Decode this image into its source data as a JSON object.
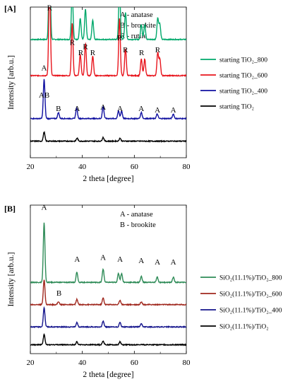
{
  "chart_data": [
    {
      "panel_label": "[A]",
      "type": "line",
      "xlabel": "2 theta [degree]",
      "ylabel": "Intensity [arb.u.]",
      "xlim": [
        20,
        80
      ],
      "x_ticks": [
        "20",
        "40",
        "60",
        "80"
      ],
      "y_ticks_shown": false,
      "legend_position": "right",
      "key": [
        "A - anatase",
        "B - brookite",
        "R - rutile"
      ],
      "series": [
        {
          "name": "starting TiO₂_800",
          "color": "#00a86b",
          "baseline": 0.785,
          "peaks": [
            [
              27.4,
              0.62
            ],
            [
              36.1,
              0.32
            ],
            [
              39.2,
              0.14
            ],
            [
              41.2,
              0.2
            ],
            [
              44.0,
              0.13
            ],
            [
              54.3,
              0.35
            ],
            [
              56.6,
              0.18
            ],
            [
              62.7,
              0.1
            ],
            [
              64.0,
              0.1
            ],
            [
              69.0,
              0.14
            ],
            [
              69.8,
              0.1
            ]
          ]
        },
        {
          "name": "starting TiO₂_600",
          "color": "#e8141c",
          "baseline": 0.545,
          "peaks": [
            [
              27.4,
              0.65
            ],
            [
              36.1,
              0.35
            ],
            [
              39.2,
              0.14
            ],
            [
              41.2,
              0.21
            ],
            [
              44.0,
              0.13
            ],
            [
              54.3,
              0.38
            ],
            [
              56.6,
              0.18
            ],
            [
              62.7,
              0.11
            ],
            [
              64.0,
              0.11
            ],
            [
              69.0,
              0.15
            ],
            [
              69.8,
              0.11
            ]
          ]
        },
        {
          "name": "starting TiO₂_400",
          "color": "#1010a0",
          "baseline": 0.26,
          "peaks": [
            [
              25.3,
              0.26
            ],
            [
              30.8,
              0.04
            ],
            [
              37.8,
              0.07
            ],
            [
              48.0,
              0.08
            ],
            [
              53.9,
              0.05
            ],
            [
              55.1,
              0.05
            ],
            [
              62.7,
              0.04
            ],
            [
              68.8,
              0.03
            ],
            [
              75.0,
              0.03
            ]
          ]
        },
        {
          "name": "starting TiO₂",
          "color": "#000000",
          "baseline": 0.11,
          "peaks": [
            [
              25.3,
              0.06
            ],
            [
              38.0,
              0.02
            ],
            [
              48.0,
              0.025
            ],
            [
              54.5,
              0.02
            ]
          ]
        }
      ],
      "annotations": [
        {
          "text": "R",
          "x": 27.4,
          "y": 0.98
        },
        {
          "text": "R",
          "x": 36.1,
          "y": 0.75
        },
        {
          "text": "R",
          "x": 39.4,
          "y": 0.68
        },
        {
          "text": "R",
          "x": 41.2,
          "y": 0.72
        },
        {
          "text": "R",
          "x": 44.0,
          "y": 0.68
        },
        {
          "text": "R",
          "x": 54.3,
          "y": 0.78
        },
        {
          "text": "R",
          "x": 56.6,
          "y": 0.7
        },
        {
          "text": "R",
          "x": 62.8,
          "y": 0.68
        },
        {
          "text": "R",
          "x": 69.0,
          "y": 0.7
        },
        {
          "text": "A",
          "x": 25.3,
          "y": 0.58
        },
        {
          "text": "AB",
          "x": 25.3,
          "y": 0.4
        },
        {
          "text": "B",
          "x": 30.8,
          "y": 0.31
        },
        {
          "text": "A",
          "x": 38.0,
          "y": 0.31
        },
        {
          "text": "A",
          "x": 48.0,
          "y": 0.32
        },
        {
          "text": "A",
          "x": 54.5,
          "y": 0.31
        },
        {
          "text": "A",
          "x": 62.7,
          "y": 0.31
        },
        {
          "text": "A",
          "x": 68.9,
          "y": 0.3
        },
        {
          "text": "A",
          "x": 75.0,
          "y": 0.3
        }
      ]
    },
    {
      "panel_label": "[B]",
      "type": "line",
      "xlabel": "2 theta [degree]",
      "ylabel": "Intensity [arb.u.]",
      "xlim": [
        20,
        80
      ],
      "x_ticks": [
        "20",
        "40",
        "60",
        "80"
      ],
      "y_ticks_shown": false,
      "legend_position": "right",
      "key": [
        "A - anatase",
        "B - brookite"
      ],
      "series": [
        {
          "name": "SiO₂(11.1%)/TiO₂_800",
          "color": "#2e8b57",
          "baseline": 0.48,
          "peaks": [
            [
              25.3,
              0.4
            ],
            [
              37.9,
              0.07
            ],
            [
              48.0,
              0.09
            ],
            [
              53.9,
              0.06
            ],
            [
              55.1,
              0.06
            ],
            [
              62.7,
              0.04
            ],
            [
              68.8,
              0.035
            ],
            [
              75.0,
              0.035
            ]
          ]
        },
        {
          "name": "SiO₂(11.1%)/TiO₂_600",
          "color": "#a0281e",
          "baseline": 0.33,
          "peaks": [
            [
              25.3,
              0.17
            ],
            [
              30.8,
              0.02
            ],
            [
              37.9,
              0.035
            ],
            [
              48.0,
              0.045
            ],
            [
              54.5,
              0.03
            ],
            [
              62.7,
              0.02
            ]
          ]
        },
        {
          "name": "SiO₂(11.1%)/TiO₂_400",
          "color": "#14148c",
          "baseline": 0.18,
          "peaks": [
            [
              25.3,
              0.13
            ],
            [
              37.9,
              0.03
            ],
            [
              48.0,
              0.04
            ],
            [
              54.5,
              0.03
            ],
            [
              62.7,
              0.02
            ]
          ]
        },
        {
          "name": "SiO₂(11.1%)/TiO₂",
          "color": "#000000",
          "baseline": 0.06,
          "peaks": [
            [
              25.3,
              0.07
            ],
            [
              37.9,
              0.02
            ],
            [
              48.0,
              0.025
            ],
            [
              54.5,
              0.02
            ]
          ]
        }
      ],
      "annotations": [
        {
          "text": "A",
          "x": 25.3,
          "y": 0.97
        },
        {
          "text": "A",
          "x": 38.0,
          "y": 0.62
        },
        {
          "text": "A",
          "x": 48.0,
          "y": 0.63
        },
        {
          "text": "A",
          "x": 54.5,
          "y": 0.62
        },
        {
          "text": "A",
          "x": 62.7,
          "y": 0.61
        },
        {
          "text": "A",
          "x": 68.9,
          "y": 0.6
        },
        {
          "text": "A",
          "x": 75.0,
          "y": 0.6
        },
        {
          "text": "B",
          "x": 31.0,
          "y": 0.39
        }
      ]
    }
  ]
}
